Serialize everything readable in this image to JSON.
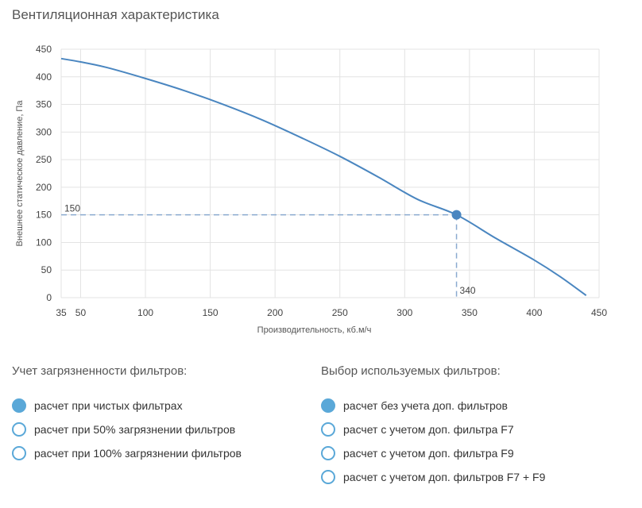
{
  "title": "Вентиляционная характеристика",
  "chart_data": {
    "type": "line",
    "xlabel": "Производительность, кб.м/ч",
    "ylabel": "Внешнее статическое давление, Па",
    "xlim": [
      35,
      450
    ],
    "ylim": [
      0,
      450
    ],
    "x_ticks": [
      35,
      50,
      100,
      150,
      200,
      250,
      300,
      350,
      400,
      450
    ],
    "y_ticks": [
      0,
      50,
      100,
      150,
      200,
      250,
      300,
      350,
      400,
      450
    ],
    "grid": true,
    "series": [
      {
        "x": [
          35,
          50,
          70,
          100,
          130,
          160,
          190,
          220,
          250,
          280,
          310,
          340,
          370,
          400,
          420,
          440
        ],
        "y": [
          433,
          427,
          417,
          397,
          375,
          350,
          322,
          290,
          256,
          218,
          178,
          150,
          108,
          68,
          38,
          4
        ]
      }
    ],
    "operating_point": {
      "x": 340,
      "y": 150,
      "x_label": "340",
      "y_label": "150"
    },
    "colors": {
      "line": "#4a86c0",
      "grid": "#e3e3e3",
      "marker": "#4a86c0"
    }
  },
  "filters_pollution": {
    "heading": "Учет загрязненности фильтров:",
    "options": [
      {
        "label": "расчет при чистых фильтрах",
        "checked": true
      },
      {
        "label": "расчет при 50% загрязнении фильтров",
        "checked": false
      },
      {
        "label": "расчет при 100% загрязнении фильтров",
        "checked": false
      }
    ]
  },
  "filters_selection": {
    "heading": "Выбор используемых фильтров:",
    "options": [
      {
        "label": "расчет без учета доп. фильтров",
        "checked": true
      },
      {
        "label": "расчет с учетом доп. фильтра F7",
        "checked": false
      },
      {
        "label": "расчет с учетом доп. фильтра F9",
        "checked": false
      },
      {
        "label": "расчет с учетом доп. фильтров F7 + F9",
        "checked": false
      }
    ]
  }
}
